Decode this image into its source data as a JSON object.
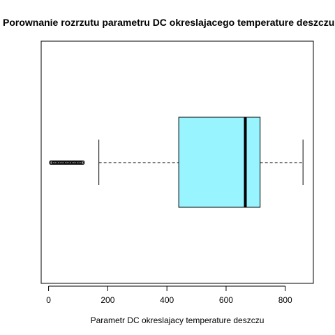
{
  "chart_data": {
    "type": "boxplot",
    "orientation": "horizontal",
    "title": "Porownanie rozrzutu parametru DC okreslajacego temperature deszczu",
    "xlabel": "Parametr DC okreslajacy temperature deszczu",
    "ylabel": "",
    "xlim": [
      -25,
      895
    ],
    "xticks": [
      0,
      200,
      400,
      600,
      800
    ],
    "grid": false,
    "box": {
      "whisker_low": 170,
      "q1": 440,
      "median": 665,
      "q3": 715,
      "whisker_high": 860,
      "fill_color": "#98f5ff"
    },
    "outliers": [
      8,
      12,
      16,
      20,
      24,
      28,
      32,
      36,
      40,
      44,
      48,
      52,
      56,
      60,
      64,
      68,
      72,
      76,
      80,
      84,
      88,
      92,
      96,
      100,
      104,
      108,
      112,
      116
    ]
  }
}
